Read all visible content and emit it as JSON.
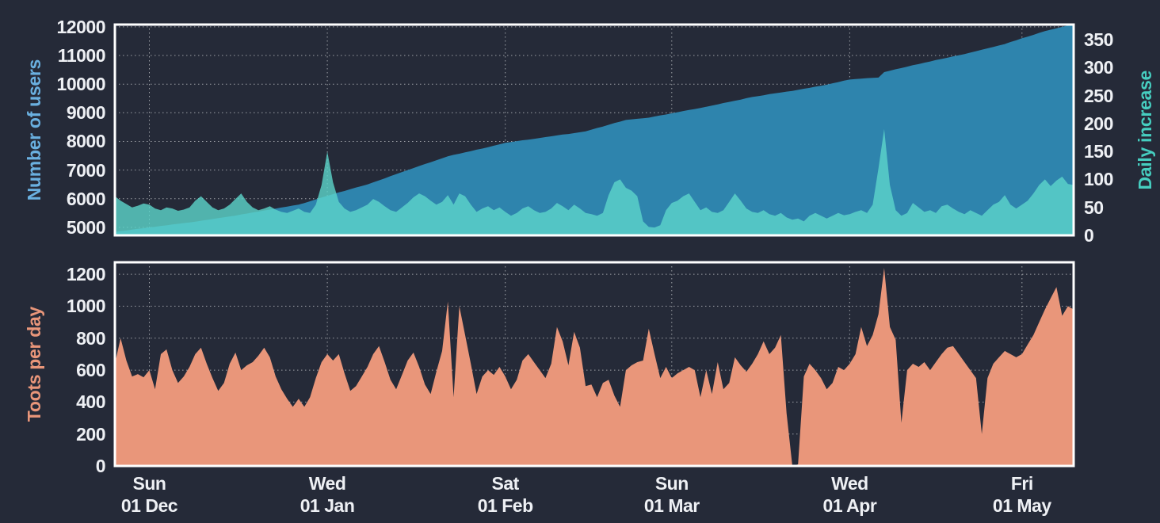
{
  "page": {
    "background": "#252a38",
    "tick_text_color": "#eef0f4",
    "grid_color": "rgba(255,255,255,0.55)",
    "frame_color": "#ffffff"
  },
  "x_ticks": [
    {
      "day": "Sun",
      "date": "01 Dec",
      "i": 6
    },
    {
      "day": "Wed",
      "date": "01 Jan",
      "i": 37
    },
    {
      "day": "Sat",
      "date": "01 Feb",
      "i": 68
    },
    {
      "day": "Sun",
      "date": "01 Mar",
      "i": 97
    },
    {
      "day": "Wed",
      "date": "01 Apr",
      "i": 128
    },
    {
      "day": "Fri",
      "date": "01 May",
      "i": 158
    }
  ],
  "chart_data": [
    {
      "type": "area",
      "name": "users-and-daily-increase",
      "grid": true,
      "legend": "none",
      "left_axis": {
        "label": "Number of users",
        "color": "#6ab0e0",
        "min": 4720,
        "max": 12080,
        "ticks": [
          5000,
          6000,
          7000,
          8000,
          9000,
          10000,
          11000,
          12000
        ]
      },
      "right_axis": {
        "label": "Daily increase",
        "color": "#46cec0",
        "min": 0,
        "max": 377,
        "ticks": [
          0,
          50,
          100,
          150,
          200,
          250,
          300,
          350
        ]
      },
      "series": [
        {
          "name": "Number of users",
          "axis": "left",
          "color": "#2e84ad",
          "opacity": 1,
          "values": [
            4840,
            4870,
            4890,
            4920,
            4950,
            4970,
            5000,
            5020,
            5050,
            5070,
            5100,
            5120,
            5150,
            5170,
            5200,
            5230,
            5260,
            5290,
            5320,
            5350,
            5380,
            5410,
            5450,
            5480,
            5520,
            5550,
            5590,
            5620,
            5655,
            5690,
            5725,
            5760,
            5790,
            5850,
            5910,
            5975,
            6040,
            6100,
            6160,
            6220,
            6270,
            6330,
            6390,
            6440,
            6500,
            6570,
            6640,
            6710,
            6790,
            6860,
            6930,
            7000,
            7070,
            7140,
            7210,
            7270,
            7340,
            7410,
            7480,
            7530,
            7570,
            7620,
            7660,
            7710,
            7750,
            7800,
            7850,
            7900,
            7950,
            7980,
            8010,
            8040,
            8060,
            8090,
            8120,
            8150,
            8180,
            8210,
            8240,
            8260,
            8290,
            8320,
            8350,
            8410,
            8470,
            8520,
            8580,
            8640,
            8690,
            8750,
            8770,
            8790,
            8810,
            8830,
            8870,
            8910,
            8940,
            8980,
            9020,
            9060,
            9100,
            9130,
            9170,
            9210,
            9250,
            9290,
            9340,
            9380,
            9420,
            9460,
            9510,
            9550,
            9580,
            9610,
            9650,
            9680,
            9710,
            9740,
            9760,
            9800,
            9840,
            9870,
            9910,
            9940,
            9980,
            10030,
            10070,
            10120,
            10160,
            10180,
            10190,
            10210,
            10220,
            10230,
            10420,
            10470,
            10520,
            10560,
            10610,
            10660,
            10700,
            10750,
            10790,
            10840,
            10880,
            10920,
            10970,
            11010,
            11050,
            11100,
            11150,
            11200,
            11250,
            11300,
            11350,
            11400,
            11470,
            11530,
            11600,
            11660,
            11720,
            11790,
            11850,
            11900,
            11950,
            12000,
            12050,
            12100
          ]
        },
        {
          "name": "Daily increase",
          "axis": "right",
          "color": "#5dd6ca",
          "opacity": 0.8,
          "values": [
            70,
            62,
            56,
            50,
            53,
            57,
            55,
            48,
            45,
            50,
            48,
            44,
            46,
            50,
            62,
            70,
            60,
            50,
            45,
            48,
            55,
            65,
            75,
            60,
            50,
            45,
            48,
            52,
            46,
            42,
            40,
            44,
            48,
            42,
            40,
            55,
            90,
            150,
            95,
            60,
            48,
            42,
            45,
            50,
            55,
            65,
            60,
            52,
            45,
            42,
            50,
            58,
            68,
            75,
            70,
            62,
            55,
            60,
            72,
            55,
            75,
            70,
            55,
            42,
            48,
            52,
            45,
            50,
            42,
            35,
            40,
            48,
            52,
            45,
            40,
            42,
            48,
            58,
            52,
            45,
            55,
            48,
            40,
            38,
            35,
            40,
            72,
            95,
            100,
            85,
            80,
            70,
            25,
            15,
            14,
            18,
            45,
            58,
            62,
            70,
            75,
            60,
            45,
            50,
            42,
            40,
            45,
            60,
            75,
            62,
            48,
            42,
            40,
            45,
            38,
            35,
            40,
            32,
            28,
            30,
            25,
            35,
            40,
            35,
            30,
            35,
            40,
            36,
            38,
            42,
            45,
            40,
            55,
            120,
            190,
            90,
            45,
            35,
            40,
            58,
            50,
            42,
            45,
            40,
            52,
            55,
            48,
            42,
            38,
            45,
            40,
            35,
            45,
            55,
            60,
            72,
            55,
            48,
            55,
            62,
            75,
            90,
            100,
            88,
            98,
            105,
            92,
            90
          ]
        }
      ]
    },
    {
      "type": "area",
      "name": "toots-per-day",
      "grid": true,
      "legend": "none",
      "y_axis": {
        "label": "Toots per day",
        "color": "#e9967a",
        "min": 0,
        "max": 1275,
        "ticks": [
          0,
          200,
          400,
          600,
          800,
          1000,
          1200
        ]
      },
      "series": [
        {
          "name": "Toots per day",
          "axis": "left",
          "color": "#e9967a",
          "opacity": 1,
          "values": [
            640,
            800,
            660,
            560,
            575,
            555,
            600,
            480,
            700,
            730,
            600,
            520,
            560,
            620,
            700,
            740,
            640,
            550,
            470,
            520,
            640,
            710,
            600,
            630,
            650,
            690,
            740,
            680,
            560,
            480,
            420,
            370,
            420,
            370,
            430,
            550,
            650,
            700,
            660,
            700,
            580,
            470,
            500,
            560,
            620,
            700,
            750,
            650,
            540,
            480,
            570,
            660,
            710,
            620,
            510,
            450,
            590,
            720,
            1030,
            430,
            1000,
            820,
            640,
            450,
            560,
            600,
            570,
            620,
            560,
            480,
            540,
            660,
            700,
            650,
            600,
            550,
            640,
            870,
            780,
            630,
            840,
            740,
            500,
            510,
            430,
            520,
            540,
            440,
            370,
            600,
            630,
            650,
            660,
            860,
            700,
            550,
            620,
            550,
            580,
            600,
            620,
            600,
            430,
            600,
            450,
            650,
            480,
            520,
            680,
            630,
            590,
            640,
            700,
            780,
            700,
            740,
            820,
            330,
            0,
            10,
            560,
            640,
            600,
            550,
            480,
            520,
            620,
            600,
            640,
            700,
            870,
            750,
            820,
            950,
            1240,
            870,
            790,
            270,
            600,
            640,
            620,
            650,
            600,
            650,
            700,
            740,
            750,
            700,
            650,
            600,
            550,
            200,
            550,
            640,
            680,
            720,
            700,
            680,
            700,
            760,
            820,
            900,
            980,
            1050,
            1120,
            940,
            1000,
            980
          ]
        }
      ]
    }
  ]
}
